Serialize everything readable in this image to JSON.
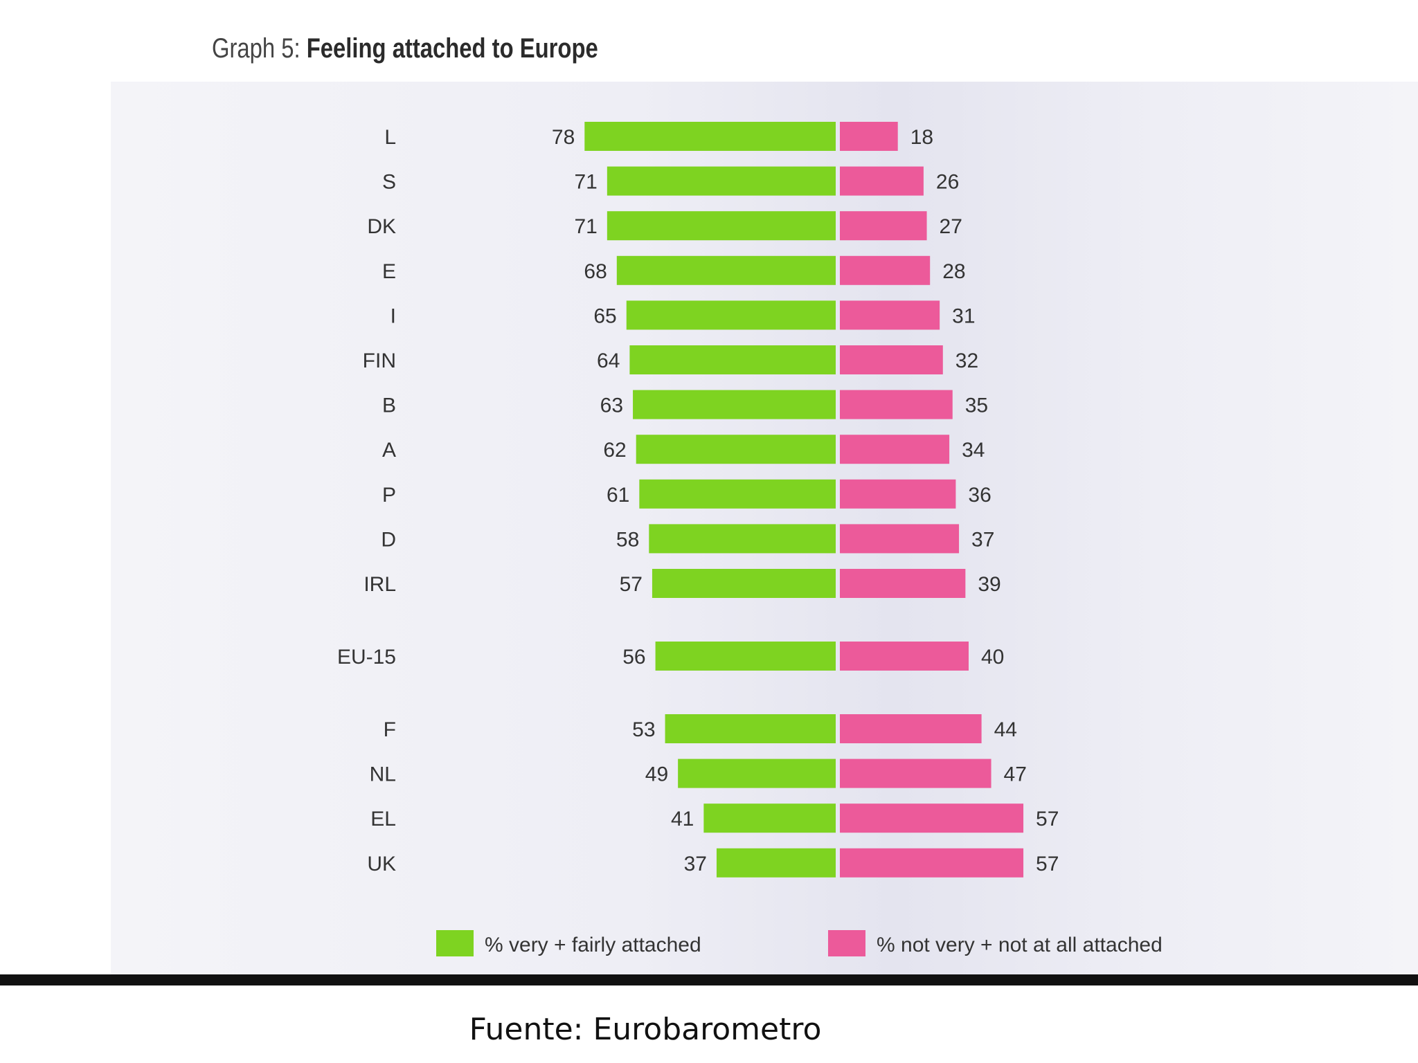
{
  "title_prefix": "Graph 5:",
  "title_main": "Feeling attached to Europe",
  "source": "Fuente: Eurobarometro",
  "colors": {
    "attached": "#7ed321",
    "not_attached": "#ec5a9a",
    "text": "#333333"
  },
  "chart_data": {
    "type": "bar",
    "orientation": "horizontal-diverging",
    "title": "Graph 5: Feeling attached to Europe",
    "xlabel": "",
    "ylabel": "",
    "grid": false,
    "legend_placement": "bottom",
    "categories": [
      "L",
      "S",
      "DK",
      "E",
      "I",
      "FIN",
      "B",
      "A",
      "P",
      "D",
      "IRL",
      "EU-15",
      "F",
      "NL",
      "EL",
      "UK"
    ],
    "series": [
      {
        "name": "% very + fairly attached",
        "color": "#7ed321",
        "values": [
          78,
          71,
          71,
          68,
          65,
          64,
          63,
          62,
          61,
          58,
          57,
          56,
          53,
          49,
          41,
          37
        ]
      },
      {
        "name": "% not very + not at all attached",
        "color": "#ec5a9a",
        "values": [
          18,
          26,
          27,
          28,
          31,
          32,
          35,
          34,
          36,
          37,
          39,
          40,
          44,
          47,
          57,
          57
        ]
      }
    ]
  }
}
